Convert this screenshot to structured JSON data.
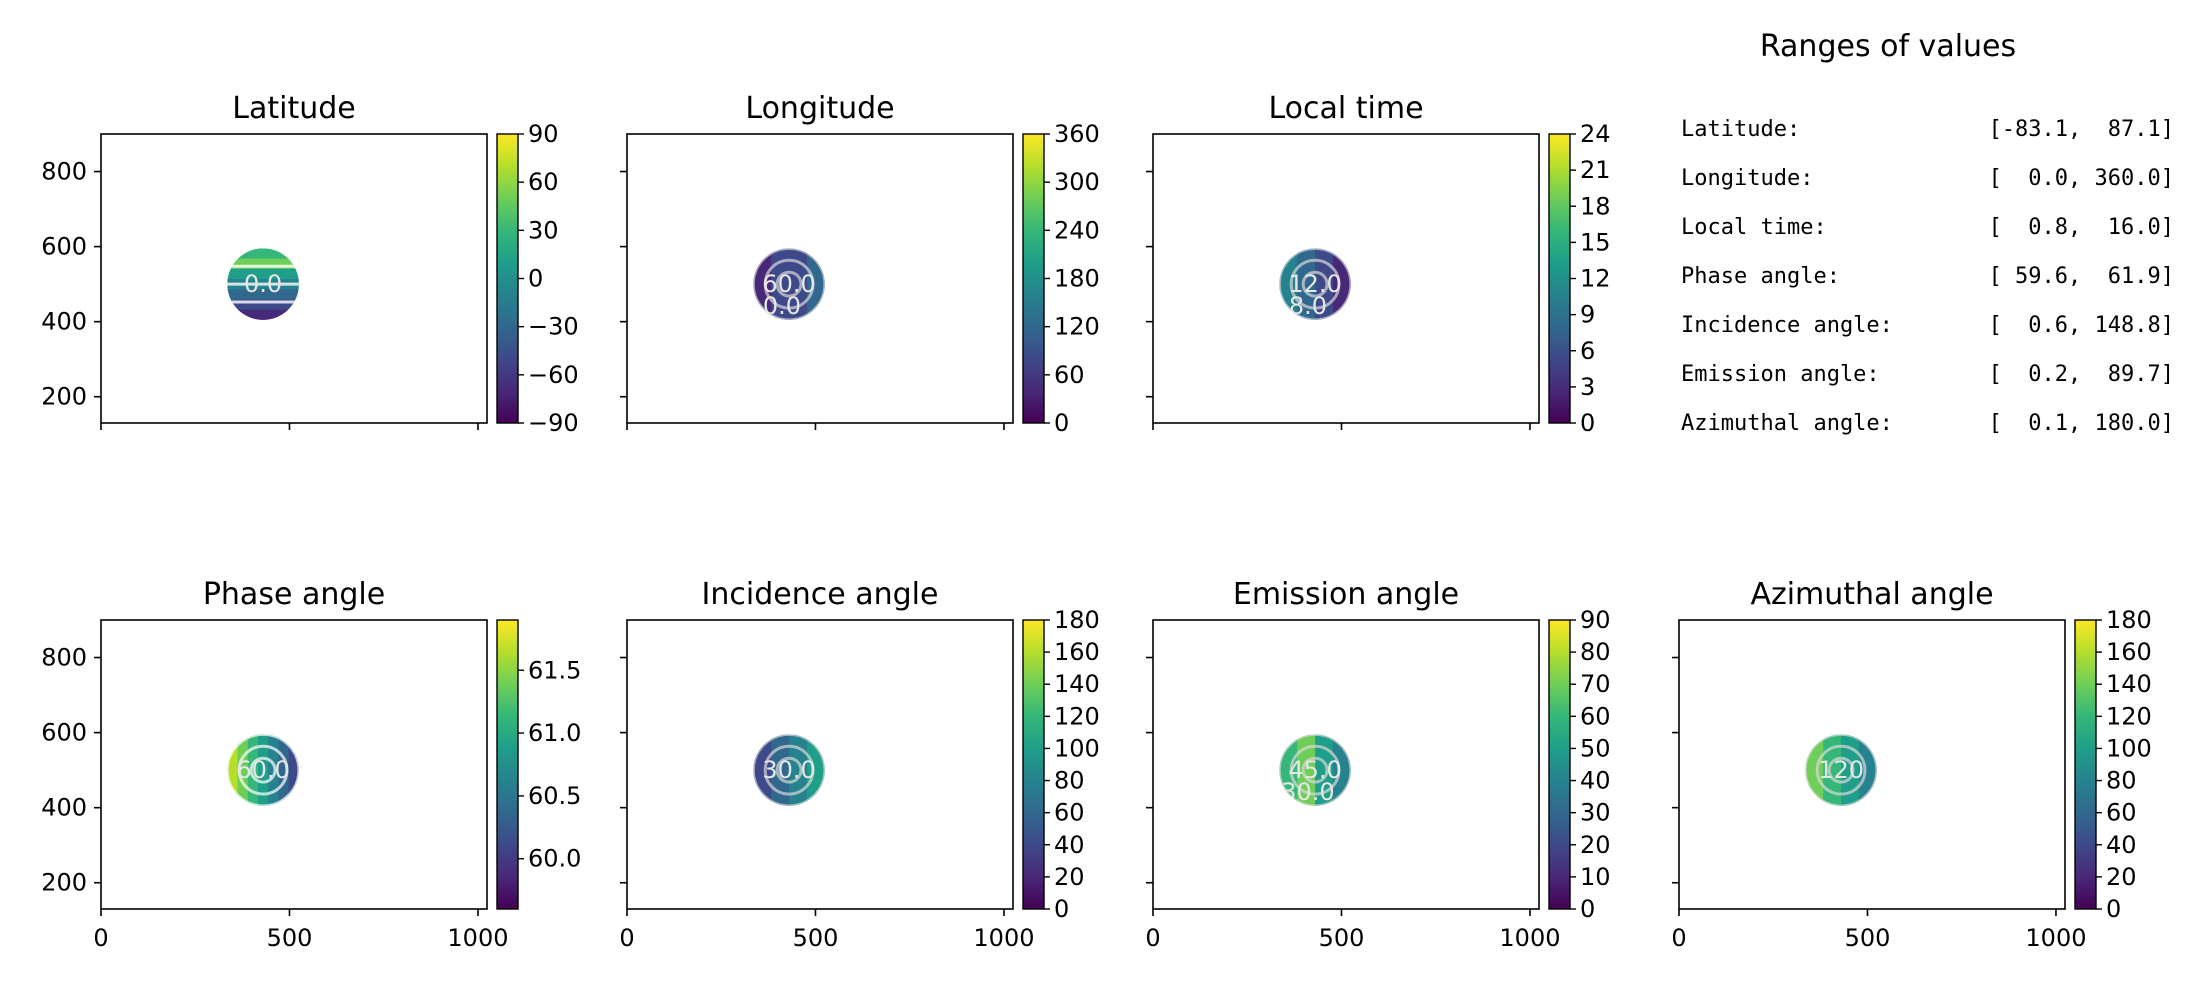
{
  "chart_data": {
    "type": "heatmap",
    "disc": {
      "center_x": 430,
      "center_y": 500,
      "radius": 95
    },
    "xaxis": {
      "range": [
        0,
        1024
      ],
      "ticks": [
        0,
        500,
        1000
      ]
    },
    "yaxis": {
      "range": [
        130,
        900
      ],
      "ticks": [
        200,
        400,
        600,
        800
      ]
    },
    "panels": [
      {
        "name": "latitude",
        "title": "Latitude",
        "colorbar": {
          "min": -90,
          "max": 90,
          "ticks": [
            -90,
            -60,
            -30,
            0,
            30,
            60,
            90
          ],
          "tick_labels": [
            "−90",
            "−60",
            "−30",
            "0",
            "30",
            "60",
            "90"
          ]
        },
        "contour_labels": [
          "0.0"
        ],
        "show_x_tick_labels": false,
        "show_y_tick_labels": true
      },
      {
        "name": "longitude",
        "title": "Longitude",
        "colorbar": {
          "min": 0,
          "max": 360,
          "ticks": [
            0,
            60,
            120,
            180,
            240,
            300,
            360
          ],
          "tick_labels": [
            "0",
            "60",
            "120",
            "180",
            "240",
            "300",
            "360"
          ]
        },
        "contour_labels": [
          "60.0",
          "0.0"
        ],
        "show_x_tick_labels": false,
        "show_y_tick_labels": false
      },
      {
        "name": "local-time",
        "title": "Local time",
        "colorbar": {
          "min": 0,
          "max": 24,
          "ticks": [
            0,
            3,
            6,
            9,
            12,
            15,
            18,
            21,
            24
          ],
          "tick_labels": [
            "0",
            "3",
            "6",
            "9",
            "12",
            "15",
            "18",
            "21",
            "24"
          ]
        },
        "contour_labels": [
          "12.0",
          "8.0"
        ],
        "show_x_tick_labels": false,
        "show_y_tick_labels": false
      },
      {
        "name": "phase-angle",
        "title": "Phase angle",
        "colorbar": {
          "min": 59.6,
          "max": 61.9,
          "ticks": [
            60.0,
            60.5,
            61.0,
            61.5
          ],
          "tick_labels": [
            "60.0",
            "60.5",
            "61.0",
            "61.5"
          ]
        },
        "contour_labels": [
          "60.0"
        ],
        "show_x_tick_labels": true,
        "show_y_tick_labels": true
      },
      {
        "name": "incidence-angle",
        "title": "Incidence angle",
        "colorbar": {
          "min": 0,
          "max": 180,
          "ticks": [
            0,
            20,
            40,
            60,
            80,
            100,
            120,
            140,
            160,
            180
          ],
          "tick_labels": [
            "0",
            "20",
            "40",
            "60",
            "80",
            "100",
            "120",
            "140",
            "160",
            "180"
          ]
        },
        "contour_labels": [
          "30.0"
        ],
        "show_x_tick_labels": true,
        "show_y_tick_labels": false
      },
      {
        "name": "emission-angle",
        "title": "Emission angle",
        "colorbar": {
          "min": 0,
          "max": 90,
          "ticks": [
            0,
            10,
            20,
            30,
            40,
            50,
            60,
            70,
            80,
            90
          ],
          "tick_labels": [
            "0",
            "10",
            "20",
            "30",
            "40",
            "50",
            "60",
            "70",
            "80",
            "90"
          ]
        },
        "contour_labels": [
          "45.0",
          "30.0"
        ],
        "show_x_tick_labels": true,
        "show_y_tick_labels": false
      },
      {
        "name": "azimuthal-angle",
        "title": "Azimuthal angle",
        "colorbar": {
          "min": 0,
          "max": 180,
          "ticks": [
            0,
            20,
            40,
            60,
            80,
            100,
            120,
            140,
            160,
            180
          ],
          "tick_labels": [
            "0",
            "20",
            "40",
            "60",
            "80",
            "100",
            "120",
            "140",
            "160",
            "180"
          ]
        },
        "contour_labels": [
          "120"
        ],
        "show_x_tick_labels": true,
        "show_y_tick_labels": false
      }
    ],
    "ranges": {
      "title": "Ranges of values",
      "rows": [
        {
          "label": "Latitude:",
          "value": "[-83.1,  87.1]"
        },
        {
          "label": "Longitude:",
          "value": "[  0.0, 360.0]"
        },
        {
          "label": "Local time:",
          "value": "[  0.8,  16.0]"
        },
        {
          "label": "Phase angle:",
          "value": "[ 59.6,  61.9]"
        },
        {
          "label": "Incidence angle:",
          "value": "[  0.6, 148.8]"
        },
        {
          "label": "Emission angle:",
          "value": "[  0.2,  89.7]"
        },
        {
          "label": "Azimuthal angle:",
          "value": "[  0.1, 180.0]"
        }
      ]
    }
  }
}
